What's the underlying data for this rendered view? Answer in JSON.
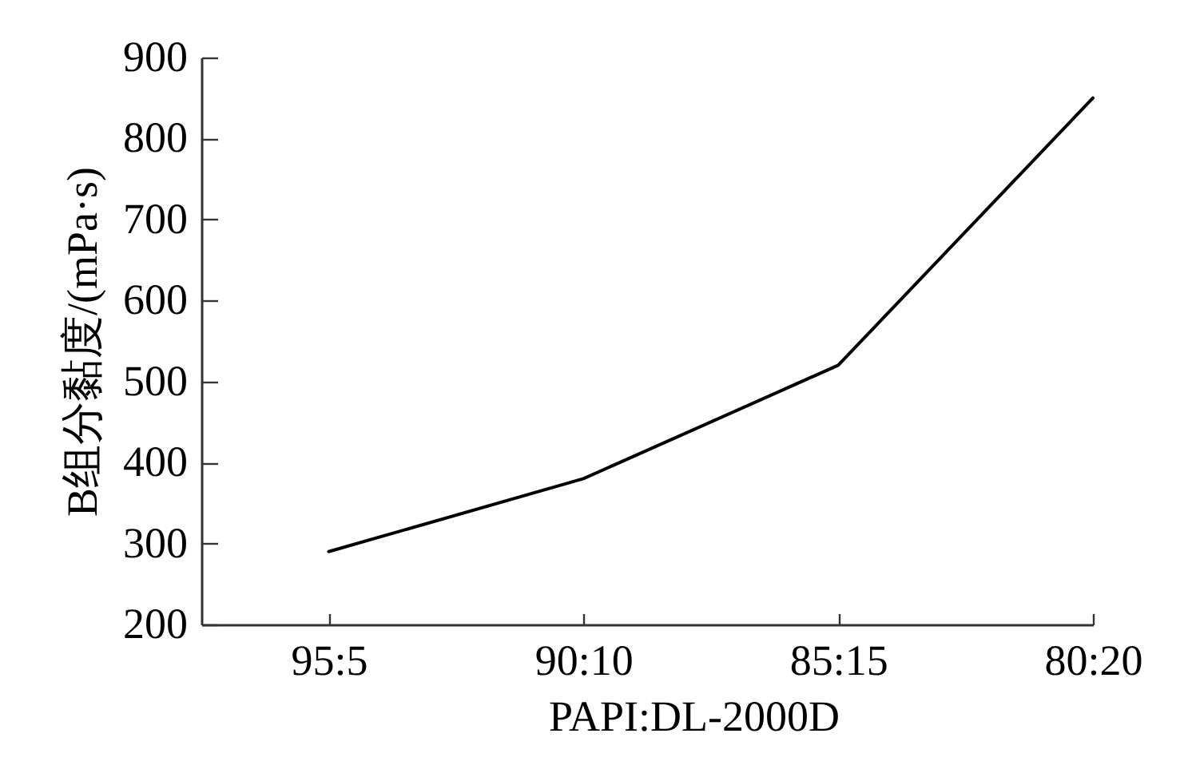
{
  "chart_data": {
    "type": "line",
    "xlabel": "PAPI:DL-2000D",
    "ylabel": "B组分黏度/(mPa·s)",
    "categories": [
      "95:5",
      "90:10",
      "85:15",
      "80:20"
    ],
    "series": [
      {
        "color": "#000000",
        "values": [
          290,
          380,
          520,
          850
        ]
      }
    ],
    "ylim": [
      200,
      900
    ],
    "yticks": [
      200,
      300,
      400,
      500,
      600,
      700,
      800,
      900
    ],
    "grid": false,
    "line_style": "solid"
  }
}
